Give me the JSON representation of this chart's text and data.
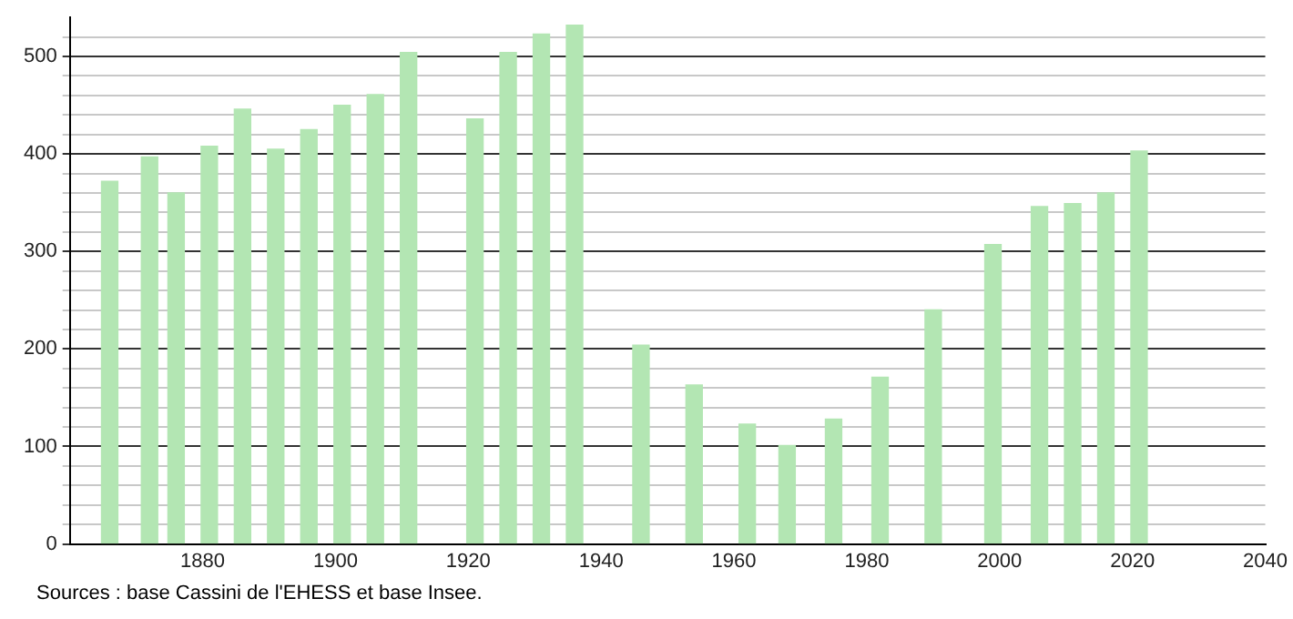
{
  "chart_data": {
    "type": "bar",
    "color": "#b3e6b3",
    "x": [
      1866,
      1872,
      1876,
      1881,
      1886,
      1891,
      1896,
      1901,
      1906,
      1911,
      1921,
      1926,
      1931,
      1936,
      1946,
      1954,
      1962,
      1968,
      1975,
      1982,
      1990,
      1999,
      2006,
      2011,
      2016,
      2021
    ],
    "values": [
      372,
      397,
      360,
      408,
      446,
      405,
      425,
      450,
      461,
      504,
      436,
      504,
      523,
      532,
      204,
      163,
      123,
      101,
      128,
      171,
      240,
      307,
      346,
      349,
      360,
      403
    ],
    "xlim": [
      1860,
      2040
    ],
    "xticks": [
      1880,
      1900,
      1920,
      1940,
      1960,
      1980,
      2000,
      2020,
      2040
    ],
    "ylim": [
      0,
      540
    ],
    "yticks": [
      0,
      {
        "value": 20,
        "label": null
      },
      {
        "value": 40,
        "label": null
      },
      {
        "value": 60,
        "label": null
      },
      {
        "value": 80,
        "label": null
      },
      100,
      {
        "value": 120,
        "label": null
      },
      {
        "value": 140,
        "label": null
      },
      {
        "value": 160,
        "label": null
      },
      {
        "value": 180,
        "label": null
      },
      200,
      {
        "value": 220,
        "label": null
      },
      {
        "value": 240,
        "label": null
      },
      {
        "value": 260,
        "label": null
      },
      {
        "value": 280,
        "label": null
      },
      300,
      {
        "value": 320,
        "label": null
      },
      {
        "value": 340,
        "label": null
      },
      {
        "value": 360,
        "label": null
      },
      {
        "value": 380,
        "label": null
      },
      400,
      {
        "value": 420,
        "label": null
      },
      {
        "value": 440,
        "label": null
      },
      {
        "value": 460,
        "label": null
      },
      {
        "value": 480,
        "label": null
      },
      500,
      {
        "value": 520,
        "label": null
      }
    ],
    "grid": "y",
    "annotations": [
      "Sources : base Cassini de l'EHESS et base Insee."
    ]
  }
}
